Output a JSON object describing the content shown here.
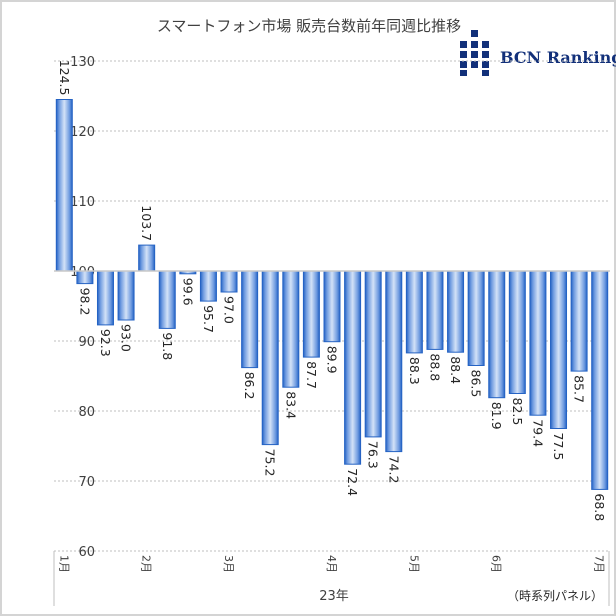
{
  "chart_data": {
    "type": "bar",
    "title": "スマートフォン市場  販売台数前年同週比推移",
    "baseline": 100,
    "ylim": [
      60,
      130
    ],
    "yticks": [
      60,
      70,
      80,
      90,
      100,
      110,
      120,
      130
    ],
    "grid": true,
    "xlabel": "23年",
    "note": "（時系列パネル）",
    "month_labels": [
      {
        "index": 0,
        "label": "1月"
      },
      {
        "index": 4,
        "label": "2月"
      },
      {
        "index": 8,
        "label": "3月"
      },
      {
        "index": 13,
        "label": "4月"
      },
      {
        "index": 17,
        "label": "5月"
      },
      {
        "index": 21,
        "label": "6月"
      },
      {
        "index": 26,
        "label": "7月"
      }
    ],
    "values": [
      124.5,
      98.2,
      92.3,
      93.0,
      103.7,
      91.8,
      99.6,
      95.7,
      97.0,
      86.2,
      75.2,
      83.4,
      87.7,
      89.9,
      72.4,
      76.3,
      74.2,
      88.3,
      88.8,
      88.4,
      86.5,
      81.9,
      82.5,
      79.4,
      77.5,
      85.7,
      68.8
    ],
    "data_labels": [
      "124.5",
      "98.2",
      "92.3",
      "93.0",
      "103.7",
      "91.8",
      "99.6",
      "95.7",
      "97.0",
      "86.2",
      "75.2",
      "83.4",
      "87.7",
      "89.9",
      "72.4",
      "76.3",
      "74.2",
      "88.3",
      "88.8",
      "88.4",
      "86.5",
      "81.9",
      "82.5",
      "79.4",
      "77.5",
      "85.7",
      "68.8"
    ]
  },
  "logo": {
    "text": "BCN Ranking",
    "color": "#12307a"
  },
  "colors": {
    "bar_edge": "#2563c4",
    "bar_center": "#cfdff6",
    "grid": "#bfbfbf",
    "baseline": "#c8c8c8"
  }
}
